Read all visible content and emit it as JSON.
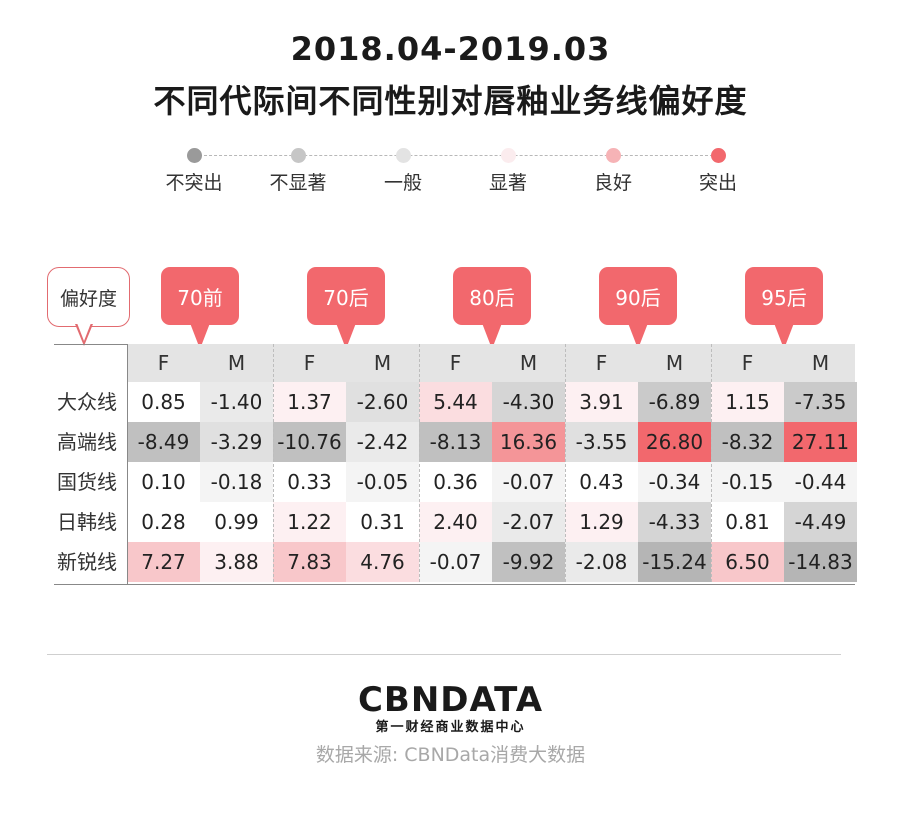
{
  "title_line1": "2018.04-2019.03",
  "title_line2": "不同代际间不同性别对唇釉业务线偏好度",
  "legend": {
    "items": [
      {
        "label": "不突出",
        "color": "#9a9a9a"
      },
      {
        "label": "不显著",
        "color": "#c6c6c6"
      },
      {
        "label": "一般",
        "color": "#e3e3e3"
      },
      {
        "label": "显著",
        "color": "#fbecee"
      },
      {
        "label": "良好",
        "color": "#f6b3b6"
      },
      {
        "label": "突出",
        "color": "#f2686d"
      }
    ]
  },
  "corner_label": "偏好度",
  "chart_data": {
    "type": "heatmap",
    "title": "2018.04-2019.03 不同代际间不同性别对唇釉业务线偏好度",
    "generations": [
      "70前",
      "70后",
      "80后",
      "90后",
      "95后"
    ],
    "genders": [
      "F",
      "M"
    ],
    "columns": [
      "70前 F",
      "70前 M",
      "70后 F",
      "70后 M",
      "80后 F",
      "80后 M",
      "90后 F",
      "90后 M",
      "95后 F",
      "95后 M"
    ],
    "rows": [
      "大众线",
      "高端线",
      "国货线",
      "日韩线",
      "新锐线"
    ],
    "values": [
      [
        0.85,
        -1.4,
        1.37,
        -2.6,
        5.44,
        -4.3,
        3.91,
        -6.89,
        1.15,
        -7.35
      ],
      [
        -8.49,
        -3.29,
        -10.76,
        -2.42,
        -8.13,
        16.36,
        -3.55,
        26.8,
        -8.32,
        27.11
      ],
      [
        0.1,
        -0.18,
        0.33,
        -0.05,
        0.36,
        -0.07,
        0.43,
        -0.34,
        -0.15,
        -0.44
      ],
      [
        0.28,
        0.99,
        1.22,
        0.31,
        2.4,
        -2.07,
        1.29,
        -4.33,
        0.81,
        -4.49
      ],
      [
        7.27,
        3.88,
        7.83,
        4.76,
        -0.07,
        -9.92,
        -2.08,
        -15.24,
        6.5,
        -14.83
      ]
    ],
    "labels": [
      [
        "0.85",
        "-1.40",
        "1.37",
        "-2.60",
        "5.44",
        "-4.30",
        "3.91",
        "-6.89",
        "1.15",
        "-7.35"
      ],
      [
        "-8.49",
        "-3.29",
        "-10.76",
        "-2.42",
        "-8.13",
        "16.36",
        "-3.55",
        "26.80",
        "-8.32",
        "27.11"
      ],
      [
        "0.10",
        "-0.18",
        "0.33",
        "-0.05",
        "0.36",
        "-0.07",
        "0.43",
        "-0.34",
        "-0.15",
        "-0.44"
      ],
      [
        "0.28",
        "0.99",
        "1.22",
        "0.31",
        "2.40",
        "-2.07",
        "1.29",
        "-4.33",
        "0.81",
        "-4.49"
      ],
      [
        "7.27",
        "3.88",
        "7.83",
        "4.76",
        "-0.07",
        "-9.92",
        "-2.08",
        "-15.24",
        "6.50",
        "-14.83"
      ]
    ]
  },
  "footer": {
    "logo": "CBNDATA",
    "logo_sub": "第一财经商业数据中心",
    "source": "数据来源: CBNData消费大数据"
  }
}
